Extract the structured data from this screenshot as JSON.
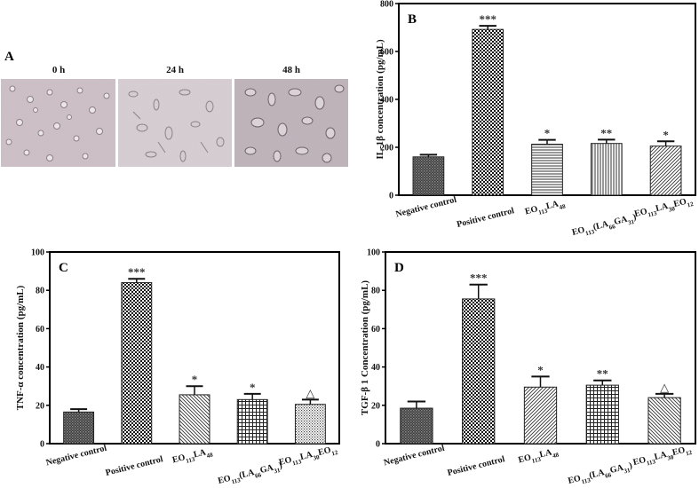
{
  "panel_a": {
    "letter": "A",
    "timepoints": [
      "0 h",
      "24 h",
      "48 h"
    ]
  },
  "chart_data": [
    {
      "panel": "B",
      "type": "bar",
      "categories": [
        "Negative control",
        "Positive control",
        "EO113LA48",
        "EO113(LA66GA31)",
        "EO113LA30EO12"
      ],
      "category_rich": [
        [
          [
            "EO",
            ""
          ],
          [
            "113",
            "sub"
          ],
          [
            "LA",
            ""
          ],
          [
            "48",
            "sub"
          ]
        ],
        [
          [
            "EO",
            ""
          ],
          [
            "113",
            "sub"
          ],
          [
            "(LA",
            ""
          ],
          [
            "66",
            "sub"
          ],
          [
            "GA",
            ""
          ],
          [
            "31",
            "sub"
          ],
          [
            ")",
            ""
          ]
        ],
        [
          [
            "EO",
            ""
          ],
          [
            "113",
            "sub"
          ],
          [
            "LA",
            ""
          ],
          [
            "30",
            "sub"
          ],
          [
            "EO",
            ""
          ],
          [
            "12",
            "sub"
          ]
        ]
      ],
      "values": [
        160,
        692,
        213,
        216,
        205
      ],
      "errors": [
        9,
        15,
        18,
        16,
        20
      ],
      "significance": [
        "",
        "***",
        "*",
        "**",
        "*"
      ],
      "ylabel": "IL-1β  concentration (pg/mL)",
      "ylim": [
        0,
        800
      ],
      "yticks": [
        0,
        200,
        400,
        600,
        800
      ]
    },
    {
      "panel": "C",
      "type": "bar",
      "categories": [
        "Negative control",
        "Positive control",
        "EO113LA48",
        "EO113(LA66GA31)",
        "EO113LA30EO12"
      ],
      "values": [
        16.5,
        84,
        25.5,
        23,
        20.5
      ],
      "errors": [
        1.5,
        2,
        4.5,
        3,
        2.5
      ],
      "significance": [
        "",
        "***",
        "*",
        "*",
        "△"
      ],
      "ylabel": "TNF-α  concentration (pg/mL)",
      "ylim": [
        0,
        100
      ],
      "yticks": [
        0,
        20,
        40,
        60,
        80,
        100
      ]
    },
    {
      "panel": "D",
      "type": "bar",
      "categories": [
        "Negative control",
        "Positive control",
        "EO113LA48",
        "EO113(LA66GA31)",
        "EO113LA30EO12"
      ],
      "values": [
        18.5,
        75.5,
        29.5,
        30.5,
        24
      ],
      "errors": [
        3.5,
        7.5,
        5.5,
        2.5,
        2
      ],
      "significance": [
        "",
        "***",
        "*",
        "**",
        "△"
      ],
      "ylabel": "TGF-β 1 Concentration (pg/mL)",
      "ylim": [
        0,
        100
      ],
      "yticks": [
        0,
        20,
        40,
        60,
        80,
        100
      ]
    }
  ]
}
